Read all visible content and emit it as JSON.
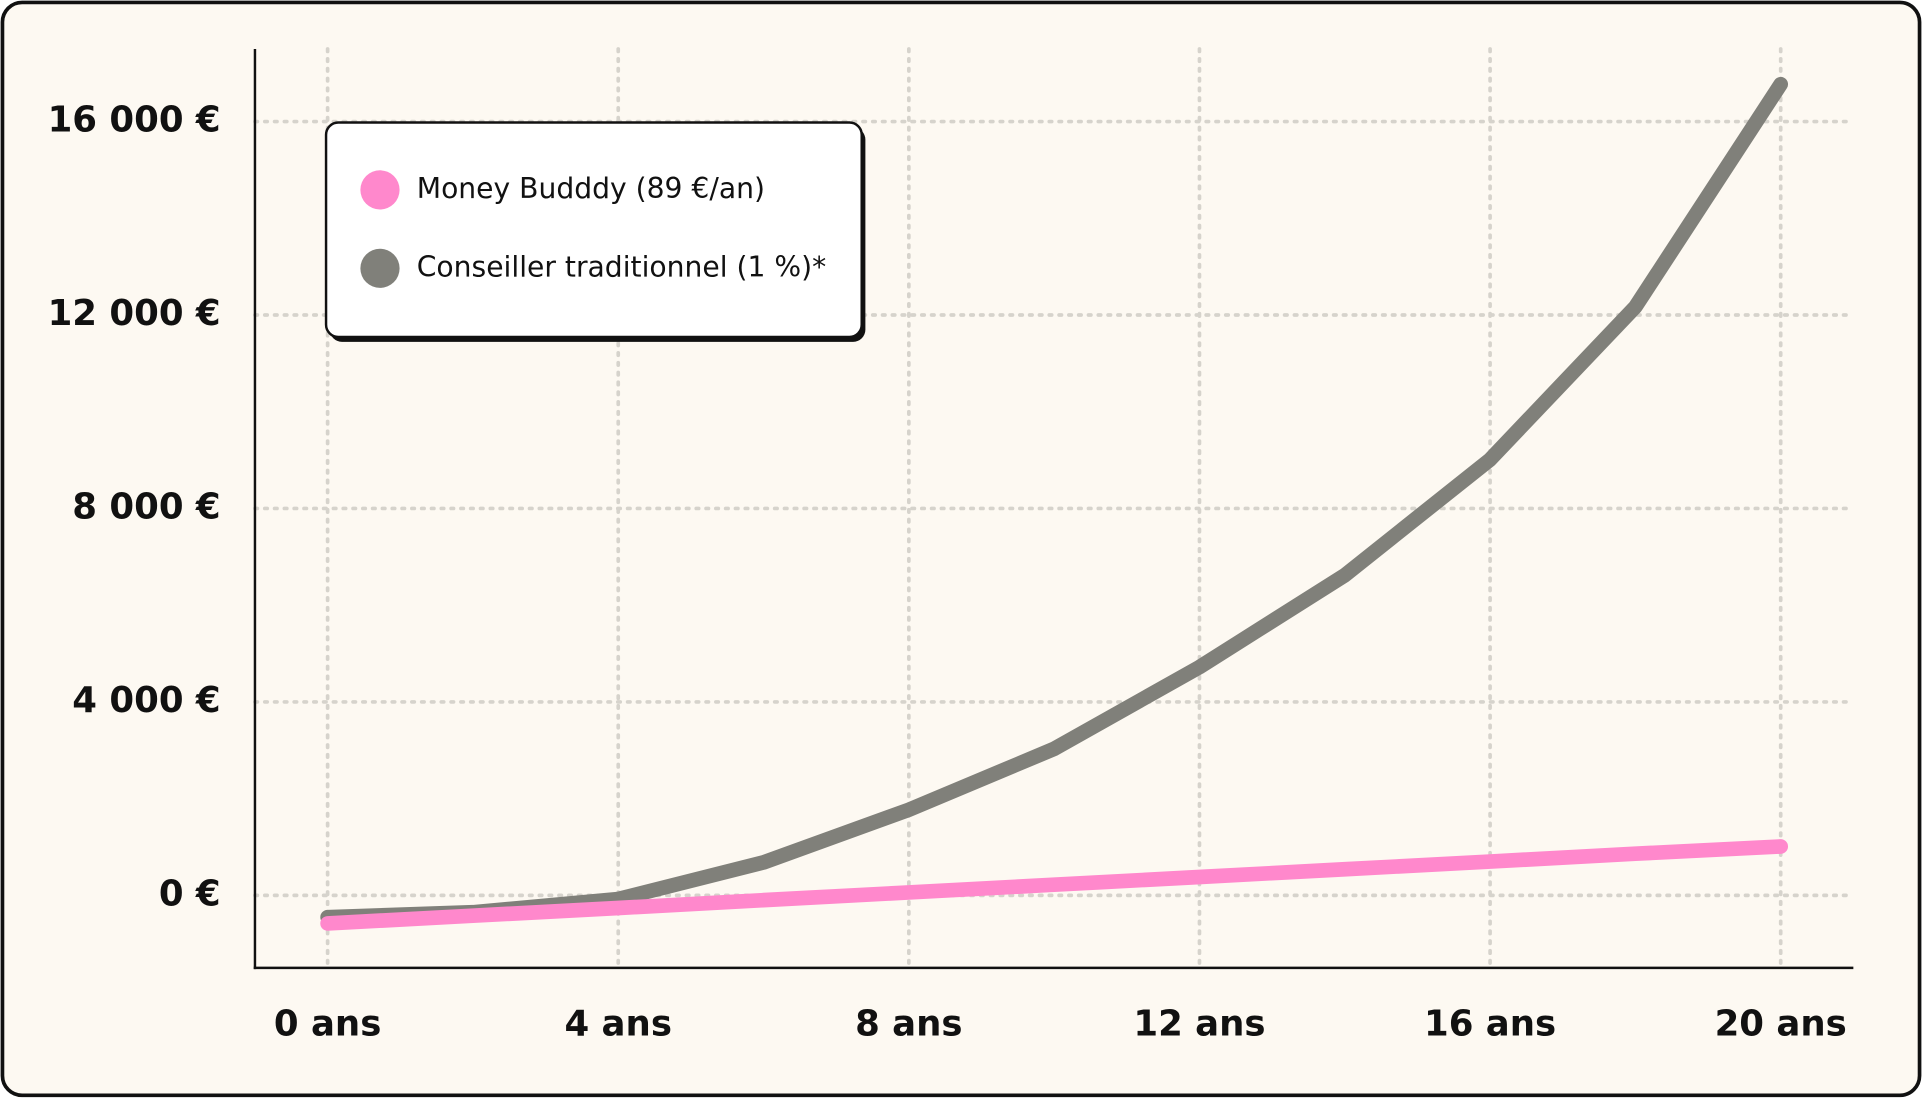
{
  "chart_data": {
    "type": "line",
    "x": [
      0,
      2,
      4,
      6,
      8,
      10,
      12,
      14,
      16,
      18,
      20
    ],
    "series": [
      {
        "name": "Conseiller traditionnel (1 %)*",
        "color": "#80807a",
        "values": [
          -450,
          -350,
          -75,
          680,
          1770,
          3030,
          4720,
          6620,
          9010,
          12170,
          16770
        ]
      },
      {
        "name": "Money Budddy (89 €/an)",
        "color": "#ff88cc",
        "values": [
          -580,
          -420,
          -260,
          -100,
          60,
          220,
          380,
          540,
          700,
          860,
          1010
        ]
      }
    ],
    "xlim": [
      -1,
      21
    ],
    "xticks": [
      {
        "value": 0,
        "label": "0 ans"
      },
      {
        "value": 4,
        "label": "4 ans"
      },
      {
        "value": 8,
        "label": "8 ans"
      },
      {
        "value": 12,
        "label": "12 ans"
      },
      {
        "value": 16,
        "label": "16 ans"
      },
      {
        "value": 20,
        "label": "20 ans"
      }
    ],
    "ylim": [
      -1500,
      17500
    ],
    "yticks": [
      {
        "value": 0,
        "label": "0 €"
      },
      {
        "value": 4000,
        "label": "4 000 €"
      },
      {
        "value": 8000,
        "label": "8 000 €"
      },
      {
        "value": 12000,
        "label": "12 000 €"
      },
      {
        "value": 16000,
        "label": "16 000 €"
      }
    ],
    "grid": true,
    "legend": "upper left"
  }
}
